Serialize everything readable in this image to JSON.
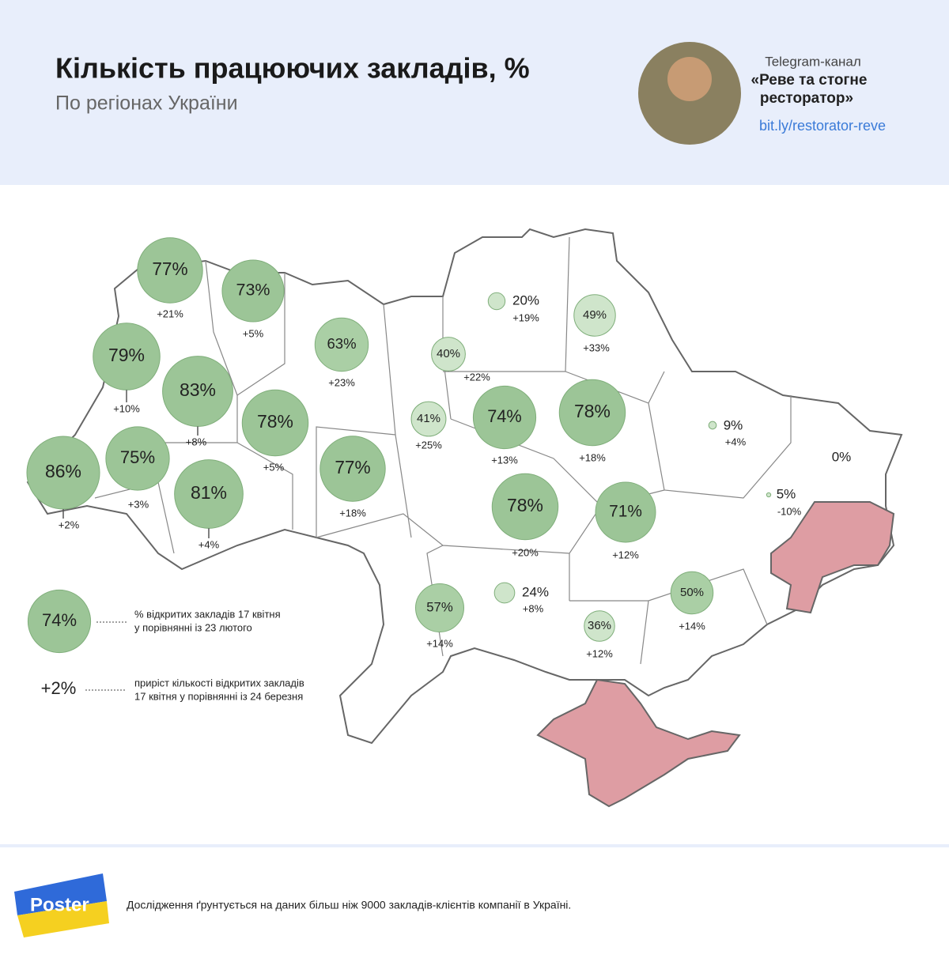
{
  "header": {
    "title": "Кількість працюючих закладів, %",
    "subtitle": "По регіонах України"
  },
  "channel": {
    "label": "Telegram-канал",
    "name": [
      "«Реве та стогне",
      "ресторатор»"
    ],
    "link": "bit.ly/restorator-reve"
  },
  "regions": [
    {
      "value": 77,
      "value_label": "77%",
      "change_label": "+21%"
    },
    {
      "value": 73,
      "value_label": "73%",
      "change_label": "+5%"
    },
    {
      "value": 79,
      "value_label": "79%",
      "change_label": "+10%"
    },
    {
      "value": 83,
      "value_label": "83%",
      "change_label": "+8%"
    },
    {
      "value": 86,
      "value_label": "86%",
      "change_label": "+2%"
    },
    {
      "value": 75,
      "value_label": "75%",
      "change_label": "+3%"
    },
    {
      "value": 81,
      "value_label": "81%",
      "change_label": "+4%"
    },
    {
      "value": 78,
      "value_label": "78%",
      "change_label": "+5%"
    },
    {
      "value": 63,
      "value_label": "63%",
      "change_label": "+23%"
    },
    {
      "value": 77,
      "value_label": "77%",
      "change_label": "+18%"
    },
    {
      "value": 40,
      "value_label": "40%",
      "change_label": "+22%"
    },
    {
      "value": 41,
      "value_label": "41%",
      "change_label": "+25%"
    },
    {
      "value": 74,
      "value_label": "74%",
      "change_label": "+13%"
    },
    {
      "value": 78,
      "value_label": "78%",
      "change_label": "+18%"
    },
    {
      "value": 20,
      "value_label": "20%",
      "change_label": "+19%"
    },
    {
      "value": 49,
      "value_label": "49%",
      "change_label": "+33%"
    },
    {
      "value": 9,
      "value_label": "9%",
      "change_label": "+4%"
    },
    {
      "value": 0,
      "value_label": "0%"
    },
    {
      "value": 5,
      "value_label": "5%",
      "change_label": "-10%"
    },
    {
      "value": 78,
      "value_label": "78%",
      "change_label": "+20%"
    },
    {
      "value": 71,
      "value_label": "71%",
      "change_label": "+12%"
    },
    {
      "value": 57,
      "value_label": "57%",
      "change_label": "+14%"
    },
    {
      "value": 24,
      "value_label": "24%",
      "change_label": "+8%"
    },
    {
      "value": 36,
      "value_label": "36%",
      "change_label": "+12%"
    },
    {
      "value": 50,
      "value_label": "50%",
      "change_label": "+14%"
    }
  ],
  "legend": {
    "bubble": {
      "value": 74,
      "value_label": "74%",
      "text": [
        "% відкритих закладів 17 квітня",
        "у порівнянні із 23 лютого"
      ]
    },
    "change": {
      "label": "+2%",
      "text": [
        "приріст кількості відкритих закладів",
        "17 квітня у порівнянні із 24 березня"
      ]
    }
  },
  "footer": {
    "logo": "Poster",
    "note": "Дослідження ґрунтується на даних більш ніж 9000 закладів-клієнтів компанії в Україні."
  }
}
